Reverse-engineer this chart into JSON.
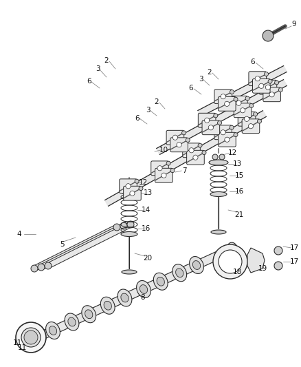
{
  "bg": "#ffffff",
  "lc": "#2a2a2a",
  "gray": "#888888",
  "lgray": "#cccccc",
  "fig_w": 4.38,
  "fig_h": 5.33,
  "dpi": 100
}
